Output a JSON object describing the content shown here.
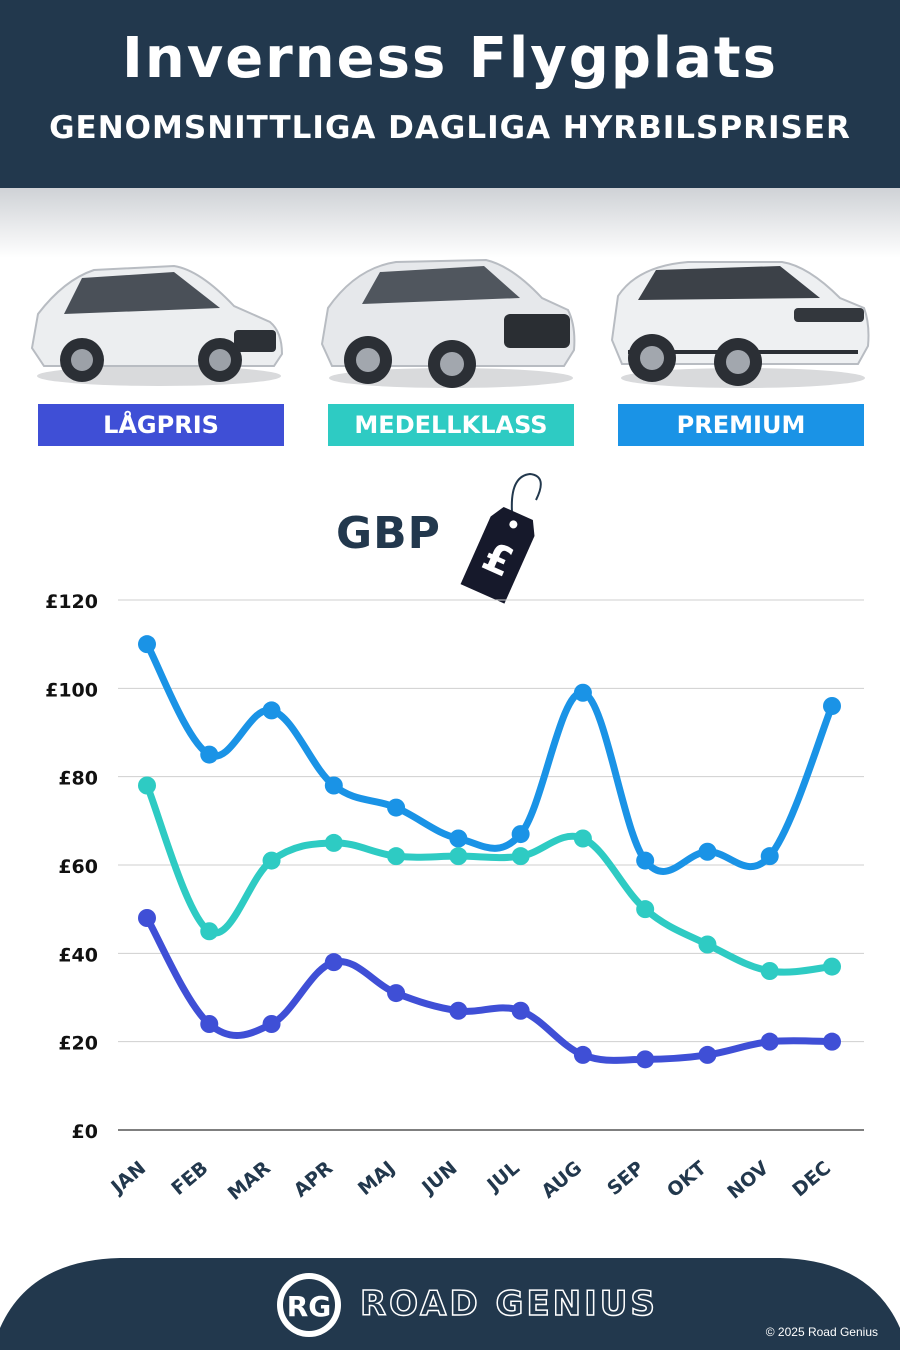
{
  "header": {
    "title": "Inverness Flygplats",
    "subtitle": "GENOMSNITTLIGA DAGLIGA HYRBILSPRISER"
  },
  "categories": [
    {
      "label": "LÅGPRIS",
      "color": "#3f4fd6"
    },
    {
      "label": "MEDELLKLASS",
      "color": "#2ecbc3"
    },
    {
      "label": "PREMIUM",
      "color": "#1a93e6"
    }
  ],
  "currency": {
    "label": "GBP",
    "symbol": "£"
  },
  "chart_data": {
    "type": "line",
    "categories": [
      "JAN",
      "FEB",
      "MAR",
      "APR",
      "MAJ",
      "JUN",
      "JUL",
      "AUG",
      "SEP",
      "OKT",
      "NOV",
      "DEC"
    ],
    "y_ticks": [
      "£0",
      "£20",
      "£40",
      "£60",
      "£80",
      "£100",
      "£120"
    ],
    "ylim": [
      0,
      120
    ],
    "grid": true,
    "series": [
      {
        "name": "PREMIUM",
        "color": "#1a93e6",
        "values": [
          110,
          85,
          95,
          78,
          73,
          66,
          67,
          99,
          61,
          63,
          62,
          96
        ]
      },
      {
        "name": "MEDELLKLASS",
        "color": "#2ecbc3",
        "values": [
          78,
          45,
          61,
          65,
          62,
          62,
          62,
          66,
          50,
          42,
          36,
          37
        ]
      },
      {
        "name": "LÅGPRIS",
        "color": "#3f4fd6",
        "values": [
          48,
          24,
          24,
          38,
          31,
          27,
          27,
          17,
          16,
          17,
          20,
          20
        ]
      }
    ]
  },
  "footer": {
    "logo_text": "RG",
    "brand": "ROAD GENIUS",
    "copyright": "© 2025 Road Genius"
  }
}
